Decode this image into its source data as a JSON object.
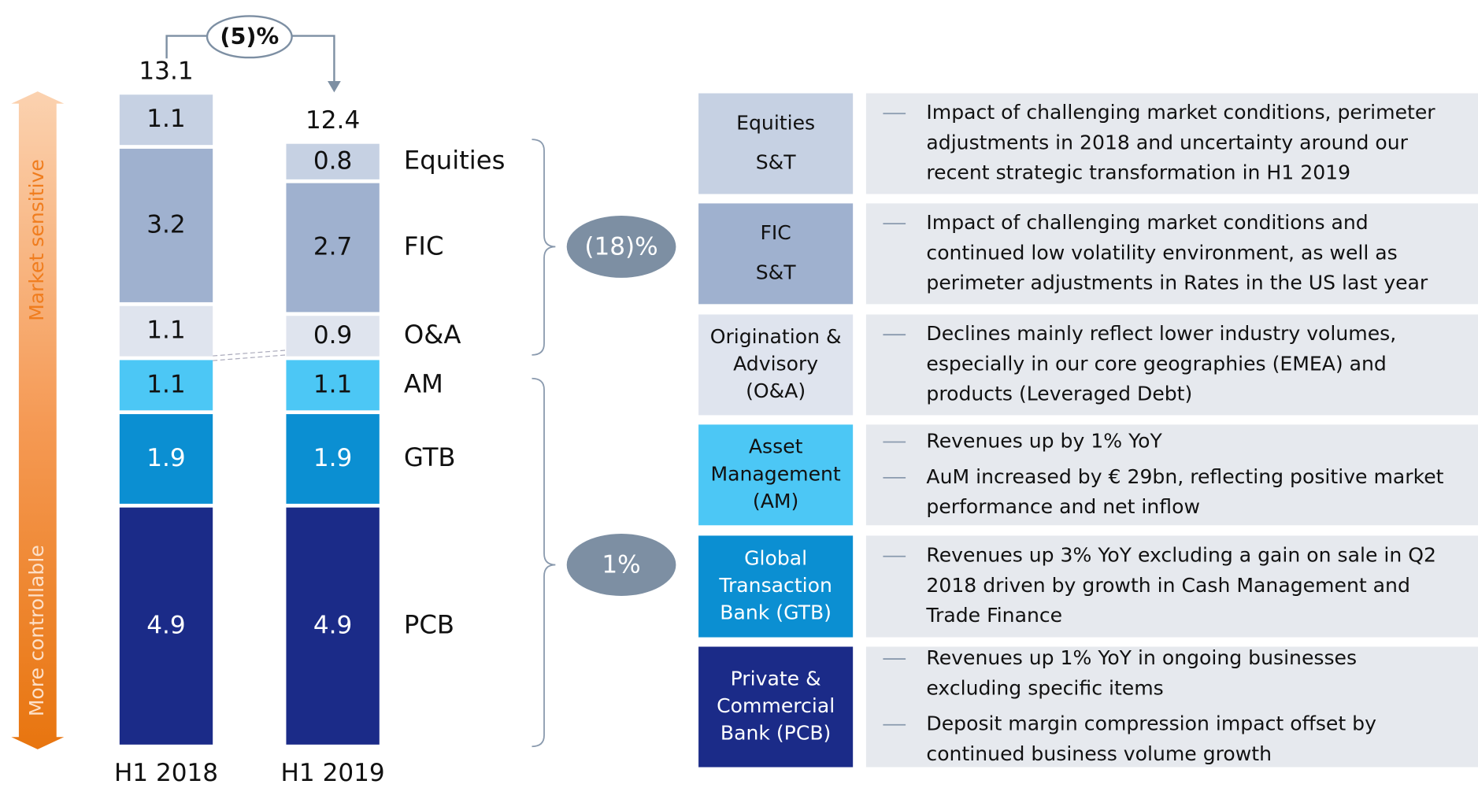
{
  "chart_data": {
    "type": "stacked_bar",
    "categories": [
      "H1 2018",
      "H1 2019"
    ],
    "series": [
      {
        "name": "PCB",
        "color": "#1b2b88",
        "values": [
          4.9,
          4.9
        ]
      },
      {
        "name": "GTB",
        "color": "#0b8fd2",
        "values": [
          1.9,
          1.9
        ]
      },
      {
        "name": "AM",
        "color": "#4cc7f5",
        "values": [
          1.1,
          1.1
        ]
      },
      {
        "name": "O&A",
        "color": "#dfe4ee",
        "values": [
          1.1,
          0.9
        ]
      },
      {
        "name": "FIC",
        "color": "#9fb1cf",
        "values": [
          3.2,
          2.7
        ]
      },
      {
        "name": "Equities",
        "color": "#c6d1e3",
        "values": [
          1.1,
          0.8
        ]
      }
    ],
    "totals": [
      13.1,
      12.4
    ],
    "ylim": [
      0,
      13.5
    ],
    "annotations": {
      "change": "(5)%",
      "market_change": "(18)%",
      "controllable_change": "1%"
    },
    "axis_labels": {
      "top": "Market sensitive",
      "bottom": "More controllable"
    }
  },
  "segments": [
    {
      "label": [
        "Equities",
        "S&T"
      ],
      "color": "#c6d1e3",
      "bullets": [
        [
          "Impact of challenging market conditions, perimeter",
          "adjustments in 2018 and uncertainty around our",
          "recent strategic transformation in H1 2019"
        ]
      ]
    },
    {
      "label": [
        "FIC",
        "S&T"
      ],
      "color": "#9fb1cf",
      "bullets": [
        [
          "Impact of challenging market conditions and",
          "continued low volatility environment, as well as",
          "perimeter adjustments in Rates in the US last year"
        ]
      ]
    },
    {
      "label": [
        "Origination &",
        "Advisory",
        "(O&A)"
      ],
      "color": "#dfe4ee",
      "bullets": [
        [
          "Declines mainly reflect lower industry volumes,",
          "especially in our core geographies (EMEA) and",
          "products (Leveraged Debt)"
        ]
      ]
    },
    {
      "label": [
        "Asset",
        "Management",
        "(AM)"
      ],
      "color": "#4cc7f5",
      "bullets": [
        [
          "Revenues up by 1% YoY"
        ],
        [
          "AuM increased by € 29bn, reflecting positive market",
          "performance and net inflow"
        ]
      ]
    },
    {
      "label": [
        "Global",
        "Transaction",
        "Bank (GTB)"
      ],
      "color": "#0b8fd2",
      "bullets": [
        [
          "Revenues up 3% YoY excluding a gain on sale in Q2",
          "2018 driven by growth in Cash Management and",
          "Trade Finance"
        ]
      ]
    },
    {
      "label": [
        "Private &",
        "Commercial",
        "Bank (PCB)"
      ],
      "color": "#1b2b88",
      "bullets": [
        [
          "Revenues up 1% YoY in ongoing businesses",
          "excluding specific items"
        ],
        [
          "Deposit margin compression impact offset by",
          "continued business volume growth"
        ]
      ]
    }
  ]
}
